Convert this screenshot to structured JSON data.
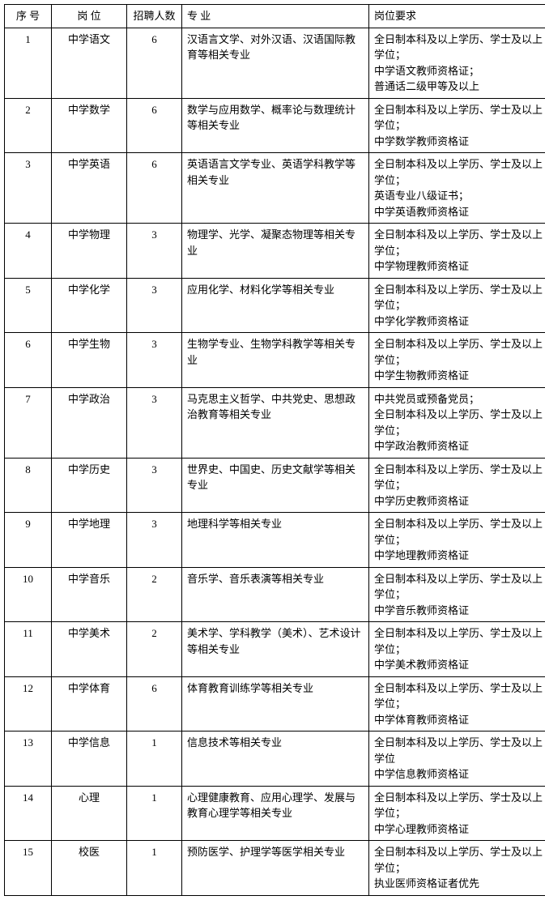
{
  "headers": {
    "seq": "序 号",
    "position": "岗 位",
    "count": "招聘人数",
    "major": "专 业",
    "requirements": "岗位要求"
  },
  "rows": [
    {
      "seq": "1",
      "position": "中学语文",
      "count": "6",
      "major": "汉语言文学、对外汉语、汉语国际教育等相关专业",
      "req": "全日制本科及以上学历、学士及以上学位；\n中学语文教师资格证；\n普通话二级甲等及以上"
    },
    {
      "seq": "2",
      "position": "中学数学",
      "count": "6",
      "major": "数学与应用数学、概率论与数理统计等相关专业",
      "req": "全日制本科及以上学历、学士及以上学位；\n中学数学教师资格证"
    },
    {
      "seq": "3",
      "position": "中学英语",
      "count": "6",
      "major": "英语语言文学专业、英语学科教学等相关专业",
      "req": "全日制本科及以上学历、学士及以上学位；\n英语专业八级证书；\n中学英语教师资格证"
    },
    {
      "seq": "4",
      "position": "中学物理",
      "count": "3",
      "major": "物理学、光学、凝聚态物理等相关专业",
      "req": "全日制本科及以上学历、学士及以上学位；\n中学物理教师资格证"
    },
    {
      "seq": "5",
      "position": "中学化学",
      "count": "3",
      "major": "应用化学、材料化学等相关专业",
      "req": "全日制本科及以上学历、学士及以上学位；\n中学化学教师资格证"
    },
    {
      "seq": "6",
      "position": "中学生物",
      "count": "3",
      "major": "生物学专业、生物学科教学等相关专业",
      "req": "全日制本科及以上学历、学士及以上学位；\n中学生物教师资格证"
    },
    {
      "seq": "7",
      "position": "中学政治",
      "count": "3",
      "major": "马克思主义哲学、中共党史、思想政治教育等相关专业",
      "req": "中共党员或预备党员；\n全日制本科及以上学历、学士及以上学位；\n中学政治教师资格证"
    },
    {
      "seq": "8",
      "position": "中学历史",
      "count": "3",
      "major": "世界史、中国史、历史文献学等相关专业",
      "req": "全日制本科及以上学历、学士及以上学位；\n中学历史教师资格证"
    },
    {
      "seq": "9",
      "position": "中学地理",
      "count": "3",
      "major": "地理科学等相关专业",
      "req": "全日制本科及以上学历、学士及以上学位；\n中学地理教师资格证"
    },
    {
      "seq": "10",
      "position": "中学音乐",
      "count": "2",
      "major": "音乐学、音乐表演等相关专业",
      "req": "全日制本科及以上学历、学士及以上学位；\n中学音乐教师资格证"
    },
    {
      "seq": "11",
      "position": "中学美术",
      "count": "2",
      "major": "美术学、学科教学（美术）、艺术设计等相关专业",
      "req": "全日制本科及以上学历、学士及以上学位；\n中学美术教师资格证"
    },
    {
      "seq": "12",
      "position": "中学体育",
      "count": "6",
      "major": "体育教育训练学等相关专业",
      "req": "全日制本科及以上学历、学士及以上学位；\n中学体育教师资格证"
    },
    {
      "seq": "13",
      "position": "中学信息",
      "count": "1",
      "major": "信息技术等相关专业",
      "req": "全日制本科及以上学历、学士及以上学位\n中学信息教师资格证"
    },
    {
      "seq": "14",
      "position": "心理",
      "count": "1",
      "major": "心理健康教育、应用心理学、发展与教育心理学等相关专业",
      "req": "全日制本科及以上学历、学士及以上学位；\n中学心理教师资格证"
    },
    {
      "seq": "15",
      "position": "校医",
      "count": "1",
      "major": "预防医学、护理学等医学相关专业",
      "req": "全日制本科及以上学历、学士及以上学位；\n执业医师资格证者优先"
    }
  ]
}
